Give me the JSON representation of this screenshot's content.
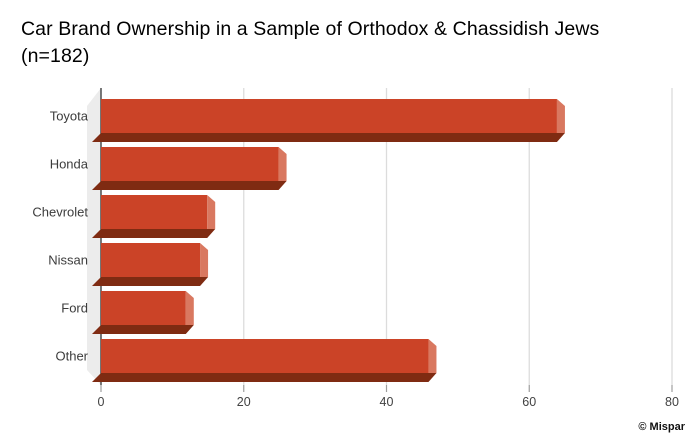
{
  "title": "Car Brand Ownership in a Sample of Orthodox & Chassidish Jews (n=182)",
  "attribution": "© Mispar",
  "chart_data": {
    "type": "bar",
    "orientation": "horizontal",
    "title": "Car Brand Ownership in a Sample of Orthodox & Chassidish Jews (n=182)",
    "sample_size": 182,
    "categories": [
      "Toyota",
      "Honda",
      "Chevrolet",
      "Nissan",
      "Ford",
      "Other"
    ],
    "values": [
      65,
      26,
      16,
      15,
      13,
      47
    ],
    "xlabel": "",
    "ylabel": "",
    "xlim": [
      0,
      80
    ],
    "xticks": [
      0,
      20,
      40,
      60,
      80
    ],
    "grid": true,
    "legend": "none",
    "style": "pseudo-3d",
    "colors": {
      "bar_face": "#cb4327",
      "bar_end_cap": "#d97860",
      "bar_bottom_shadow": "#7f2b12",
      "wall": "#ececec",
      "gridline": "#dcdcdc",
      "axis_line": "#333333",
      "tick": "#9e9e9e",
      "tick_label": "#424242",
      "category_label": "#3c3c3c",
      "background": "#ffffff"
    }
  }
}
